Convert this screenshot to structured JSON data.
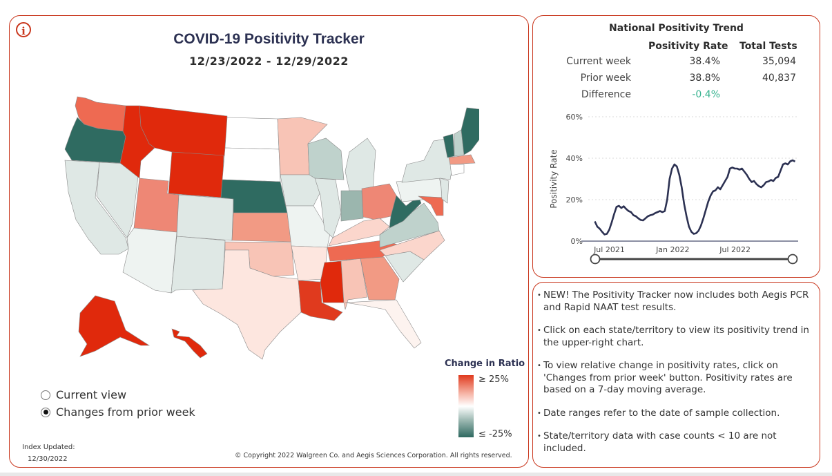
{
  "left": {
    "info_icon": "info-icon",
    "title": "COVID-19 Positivity Tracker",
    "date_range": "12/23/2022 - 12/29/2022",
    "view_options": [
      {
        "label": "Current view",
        "selected": false
      },
      {
        "label": "Changes from prior week",
        "selected": true
      }
    ],
    "legend": {
      "title": "Change in Ratio",
      "high": "≥ 25%",
      "low": "≤ -25%"
    },
    "index_updated_label": "Index Updated:",
    "index_updated_date": "12/30/2022",
    "copyright": "© Copyright 2022 Walgreen Co. and Aegis Sciences Corporation. All rights reserved."
  },
  "colors": {
    "accent": "#c9361c",
    "red_strong": "#e0290c",
    "red_med": "#ee6a52",
    "salmon": "#f29a84",
    "pink": "#f8c4b6",
    "pale_pink": "#fde6df",
    "white": "#ffffff",
    "pale_green": "#dfe8e5",
    "light_green": "#bfd2cc",
    "mid_green": "#9bb6ae",
    "dark_green": "#2f6b61",
    "line": "#2c3152",
    "positive": "#37b38f"
  },
  "trend": {
    "title": "National Positivity Trend",
    "col_rate": "Positivity Rate",
    "col_tests": "Total Tests",
    "rows": [
      {
        "label": "Current week",
        "rate": "38.4%",
        "tests": "35,094"
      },
      {
        "label": "Prior week",
        "rate": "38.8%",
        "tests": "40,837"
      },
      {
        "label": "Difference",
        "rate": "-0.4%",
        "tests": ""
      }
    ]
  },
  "chart_data": {
    "type": "line",
    "ylabel": "Positivity Rate",
    "xlabel": "",
    "ylim": [
      0,
      60
    ],
    "yticks": [
      "0%",
      "20%",
      "40%",
      "60%"
    ],
    "xticks": [
      "Jul 2021",
      "Jan 2022",
      "Jul 2022"
    ],
    "grid": true,
    "series": [
      {
        "values": [
          [
            "2021-05-20",
            9.5
          ],
          [
            "2021-05-27",
            7
          ],
          [
            "2021-06-03",
            6
          ],
          [
            "2021-06-10",
            4.5
          ],
          [
            "2021-06-17",
            3.2
          ],
          [
            "2021-06-24",
            3.5
          ],
          [
            "2021-07-01",
            5.5
          ],
          [
            "2021-07-08",
            9
          ],
          [
            "2021-07-15",
            13
          ],
          [
            "2021-07-22",
            16.5
          ],
          [
            "2021-07-29",
            17
          ],
          [
            "2021-08-05",
            16
          ],
          [
            "2021-08-12",
            16.8
          ],
          [
            "2021-08-19",
            15.5
          ],
          [
            "2021-08-26",
            14.5
          ],
          [
            "2021-09-02",
            14
          ],
          [
            "2021-09-09",
            12.5
          ],
          [
            "2021-09-16",
            12
          ],
          [
            "2021-09-23",
            11
          ],
          [
            "2021-09-30",
            10.2
          ],
          [
            "2021-10-07",
            10
          ],
          [
            "2021-10-14",
            11
          ],
          [
            "2021-10-21",
            12
          ],
          [
            "2021-10-28",
            12.5
          ],
          [
            "2021-11-04",
            12.8
          ],
          [
            "2021-11-11",
            13.5
          ],
          [
            "2021-11-18",
            14
          ],
          [
            "2021-11-25",
            14.5
          ],
          [
            "2021-12-02",
            14
          ],
          [
            "2021-12-09",
            14.5
          ],
          [
            "2021-12-16",
            20
          ],
          [
            "2021-12-23",
            30
          ],
          [
            "2021-12-30",
            35
          ],
          [
            "2022-01-06",
            37
          ],
          [
            "2022-01-13",
            36
          ],
          [
            "2022-01-20",
            32
          ],
          [
            "2022-01-27",
            26
          ],
          [
            "2022-02-03",
            18
          ],
          [
            "2022-02-10",
            12
          ],
          [
            "2022-02-17",
            7
          ],
          [
            "2022-02-24",
            4.5
          ],
          [
            "2022-03-03",
            3.5
          ],
          [
            "2022-03-10",
            3.8
          ],
          [
            "2022-03-17",
            5
          ],
          [
            "2022-03-24",
            7.5
          ],
          [
            "2022-03-31",
            11
          ],
          [
            "2022-04-07",
            15
          ],
          [
            "2022-04-14",
            19
          ],
          [
            "2022-04-21",
            22
          ],
          [
            "2022-04-28",
            24
          ],
          [
            "2022-05-05",
            24.5
          ],
          [
            "2022-05-12",
            26
          ],
          [
            "2022-05-19",
            25
          ],
          [
            "2022-05-26",
            27
          ],
          [
            "2022-06-02",
            29
          ],
          [
            "2022-06-09",
            31
          ],
          [
            "2022-06-16",
            35
          ],
          [
            "2022-06-23",
            35.5
          ],
          [
            "2022-06-30",
            35
          ],
          [
            "2022-07-07",
            35
          ],
          [
            "2022-07-14",
            34.5
          ],
          [
            "2022-07-21",
            35
          ],
          [
            "2022-07-28",
            33.5
          ],
          [
            "2022-08-04",
            32
          ],
          [
            "2022-08-11",
            30
          ],
          [
            "2022-08-18",
            28.5
          ],
          [
            "2022-08-25",
            29
          ],
          [
            "2022-09-01",
            27.5
          ],
          [
            "2022-09-08",
            26.5
          ],
          [
            "2022-09-15",
            26
          ],
          [
            "2022-09-22",
            27
          ],
          [
            "2022-09-29",
            28.5
          ],
          [
            "2022-10-06",
            28.8
          ],
          [
            "2022-10-13",
            29.5
          ],
          [
            "2022-10-20",
            29
          ],
          [
            "2022-10-27",
            30.5
          ],
          [
            "2022-11-03",
            31
          ],
          [
            "2022-11-10",
            34
          ],
          [
            "2022-11-17",
            37
          ],
          [
            "2022-11-24",
            37.5
          ],
          [
            "2022-12-01",
            37
          ],
          [
            "2022-12-08",
            38.5
          ],
          [
            "2022-12-15",
            39
          ],
          [
            "2022-12-22",
            38.4
          ]
        ]
      }
    ]
  },
  "notes": [
    "NEW! The Positivity Tracker now includes both Aegis PCR and Rapid NAAT test results.",
    "Click on each state/territory to view its positivity trend in the upper-right chart.",
    "To view relative change in positivity rates, click on 'Changes from prior week' button. Positivity rates are based on a 7-day moving average.",
    "Date ranges refer to the date of sample collection.",
    "State/territory data with case counts < 10 are not included."
  ]
}
